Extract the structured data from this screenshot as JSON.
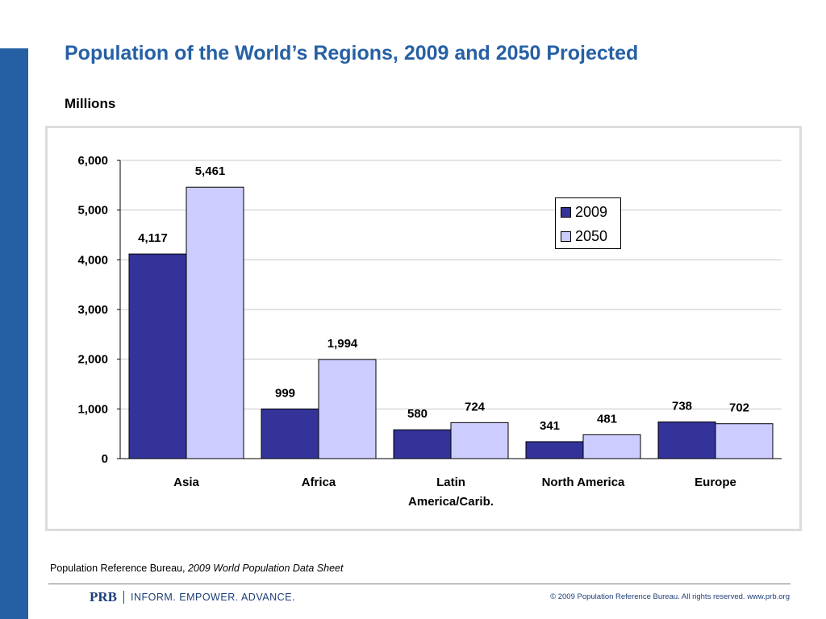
{
  "slide": {
    "title": "Population of the World’s Regions, 2009 and 2050 Projected",
    "units_label": "Millions",
    "accent_color": "#2660a4"
  },
  "chart_data": {
    "type": "bar",
    "categories": [
      [
        "Asia"
      ],
      [
        "Africa"
      ],
      [
        "Latin",
        "America/Carib."
      ],
      [
        "North America"
      ],
      [
        "Europe"
      ]
    ],
    "series": [
      {
        "name": "2009",
        "values": [
          4117,
          999,
          580,
          341,
          738
        ],
        "labels": [
          "4,117",
          "999",
          "580",
          "341",
          "738"
        ],
        "color": "#333399"
      },
      {
        "name": "2050",
        "values": [
          5461,
          1994,
          724,
          481,
          702
        ],
        "labels": [
          "5,461",
          "1,994",
          "724",
          "481",
          "702"
        ],
        "color": "#ccccff"
      }
    ],
    "ylim": [
      0,
      6000
    ],
    "yticks": [
      0,
      1000,
      2000,
      3000,
      4000,
      5000,
      6000
    ],
    "ytick_labels": [
      "0",
      "1,000",
      "2,000",
      "3,000",
      "4,000",
      "5,000",
      "6,000"
    ],
    "grid": true,
    "legend_position": "top-right"
  },
  "source": {
    "prefix": "Population Reference Bureau, ",
    "title": "2009 World Population Data Sheet"
  },
  "footer": {
    "logo_text": "PRB",
    "tagline": "INFORM. EMPOWER. ADVANCE.",
    "copyright": "© 2009 Population Reference Bureau. All rights reserved. www.prb.org"
  }
}
